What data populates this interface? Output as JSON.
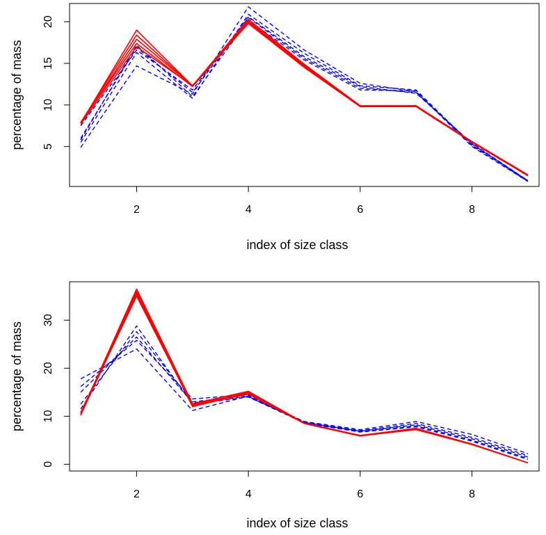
{
  "chart_data": [
    {
      "type": "line",
      "xlabel": "index of size class",
      "ylabel": "percentage of mass",
      "xlim": [
        0.8,
        9.2
      ],
      "ylim": [
        0.2,
        22.2
      ],
      "xticks": [
        2,
        4,
        6,
        8
      ],
      "yticks": [
        5,
        10,
        15,
        20
      ],
      "x": [
        1,
        2,
        3,
        4,
        5,
        6,
        7,
        8,
        9
      ],
      "grid": false,
      "legend": "none",
      "series": [
        {
          "style": "solid",
          "color": "#ff0000",
          "values": [
            7.8,
            19.0,
            12.3,
            20.3,
            14.9,
            9.9,
            9.9,
            5.6,
            1.6
          ]
        },
        {
          "style": "solid",
          "color": "#ff0000",
          "values": [
            7.9,
            18.4,
            12.3,
            20.1,
            14.8,
            9.9,
            9.9,
            5.6,
            1.6
          ]
        },
        {
          "style": "solid",
          "color": "#ff0000",
          "values": [
            7.8,
            17.9,
            12.3,
            20.0,
            14.7,
            9.8,
            9.9,
            5.5,
            1.5
          ]
        },
        {
          "style": "solid",
          "color": "#ff0000",
          "values": [
            7.9,
            17.4,
            12.2,
            19.9,
            14.6,
            9.8,
            9.8,
            5.5,
            1.5
          ]
        },
        {
          "style": "solid",
          "color": "#ff0000",
          "values": [
            7.7,
            17.0,
            12.3,
            19.8,
            14.5,
            9.8,
            9.8,
            5.5,
            1.5
          ]
        },
        {
          "style": "dashed",
          "color": "#0000ff",
          "values": [
            4.9,
            14.7,
            11.3,
            21.8,
            16.6,
            12.6,
            11.6,
            5.0,
            0.8
          ]
        },
        {
          "style": "dashed",
          "color": "#0000ff",
          "values": [
            5.5,
            16.3,
            10.8,
            20.9,
            16.2,
            12.3,
            11.8,
            5.2,
            0.8
          ]
        },
        {
          "style": "dashed",
          "color": "#0000ff",
          "values": [
            6.0,
            16.9,
            11.5,
            20.5,
            15.6,
            12.0,
            11.5,
            5.3,
            0.9
          ]
        },
        {
          "style": "dashed",
          "color": "#0000ff",
          "values": [
            5.8,
            17.2,
            11.0,
            20.2,
            15.4,
            11.8,
            11.7,
            5.1,
            0.9
          ]
        },
        {
          "style": "dashed",
          "color": "#0000ff",
          "values": [
            7.5,
            16.6,
            11.8,
            20.6,
            15.8,
            12.2,
            11.4,
            5.4,
            0.9
          ]
        }
      ]
    },
    {
      "type": "line",
      "xlabel": "index of size class",
      "ylabel": "percentage of mass",
      "xlim": [
        0.8,
        9.2
      ],
      "ylim": [
        -1.4,
        38.0
      ],
      "xticks": [
        2,
        4,
        6,
        8
      ],
      "yticks": [
        0,
        10,
        20,
        30
      ],
      "x": [
        1,
        2,
        3,
        4,
        5,
        6,
        7,
        8,
        9
      ],
      "grid": false,
      "legend": "none",
      "series": [
        {
          "style": "solid",
          "color": "#ff0000",
          "values": [
            10.5,
            36.5,
            12.6,
            15.2,
            8.6,
            6.0,
            7.5,
            4.2,
            0.3
          ]
        },
        {
          "style": "solid",
          "color": "#ff0000",
          "values": [
            10.2,
            36.0,
            12.3,
            15.0,
            8.6,
            6.0,
            7.4,
            4.2,
            0.3
          ]
        },
        {
          "style": "solid",
          "color": "#ff0000",
          "values": [
            10.8,
            35.6,
            12.0,
            14.8,
            8.5,
            5.9,
            7.3,
            4.1,
            0.3
          ]
        },
        {
          "style": "solid",
          "color": "#ff0000",
          "values": [
            10.3,
            35.2,
            12.4,
            14.9,
            8.5,
            5.9,
            7.2,
            4.1,
            0.3
          ]
        },
        {
          "style": "solid",
          "color": "#ff0000",
          "values": [
            10.6,
            35.0,
            12.2,
            14.6,
            8.5,
            5.9,
            7.4,
            4.2,
            0.3
          ]
        },
        {
          "style": "dashed",
          "color": "#0000ff",
          "values": [
            17.8,
            24.0,
            11.2,
            14.2,
            8.9,
            7.2,
            8.9,
            6.2,
            2.2
          ]
        },
        {
          "style": "dashed",
          "color": "#0000ff",
          "values": [
            16.2,
            25.8,
            13.6,
            14.5,
            8.8,
            7.0,
            8.5,
            5.6,
            1.8
          ]
        },
        {
          "style": "dashed",
          "color": "#0000ff",
          "values": [
            15.0,
            26.5,
            12.8,
            14.1,
            8.7,
            6.9,
            8.2,
            5.3,
            1.5
          ]
        },
        {
          "style": "dashed",
          "color": "#0000ff",
          "values": [
            12.5,
            27.6,
            13.0,
            14.3,
            8.6,
            6.8,
            8.0,
            5.0,
            1.2
          ]
        },
        {
          "style": "dashed",
          "color": "#0000ff",
          "values": [
            11.5,
            28.8,
            12.5,
            14.0,
            8.6,
            6.7,
            7.8,
            4.8,
            1.0
          ]
        }
      ]
    }
  ]
}
